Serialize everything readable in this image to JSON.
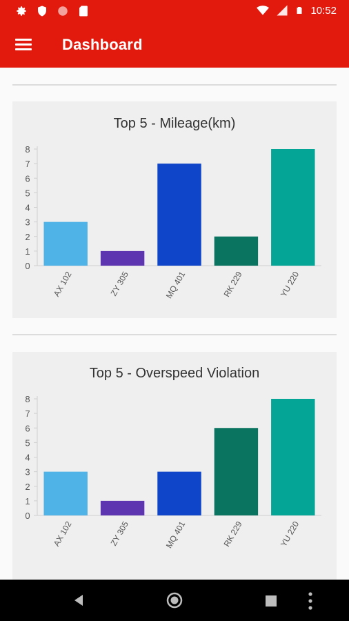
{
  "status_bar": {
    "time": "10:52",
    "left_icons": [
      "settings-icon",
      "shield-icon",
      "record-icon",
      "sd-card-icon"
    ],
    "right_icons": [
      "wifi-icon",
      "signal-icon",
      "battery-icon"
    ]
  },
  "app_bar": {
    "title": "Dashboard",
    "menu_icon": "menu-icon"
  },
  "colors": {
    "primary": "#e21a0e",
    "bar_colors": [
      "#4fb3e8",
      "#5e35b1",
      "#0f45c8",
      "#0b7461",
      "#04a596"
    ]
  },
  "chart_data": [
    {
      "type": "bar",
      "title": "Top 5 - Mileage(km)",
      "categories": [
        "AX 102",
        "ZY 305",
        "MQ 401",
        "RK 229",
        "YU 220"
      ],
      "values": [
        3,
        1,
        7,
        2,
        8
      ],
      "ylim": [
        0,
        8
      ],
      "yticks": [
        0,
        1,
        2,
        3,
        4,
        5,
        6,
        7,
        8
      ],
      "xlabel": "",
      "ylabel": "",
      "grid": false,
      "legend": "none"
    },
    {
      "type": "bar",
      "title": "Top 5 - Overspeed Violation",
      "categories": [
        "AX 102",
        "ZY 305",
        "MQ 401",
        "RK 229",
        "YU 220"
      ],
      "values": [
        3,
        1,
        3,
        6,
        8
      ],
      "ylim": [
        0,
        8
      ],
      "yticks": [
        0,
        1,
        2,
        3,
        4,
        5,
        6,
        7,
        8
      ],
      "xlabel": "",
      "ylabel": "",
      "grid": false,
      "legend": "none"
    }
  ],
  "nav_bar": {
    "icons": [
      "back-icon",
      "home-icon",
      "recents-icon",
      "more-icon"
    ]
  }
}
